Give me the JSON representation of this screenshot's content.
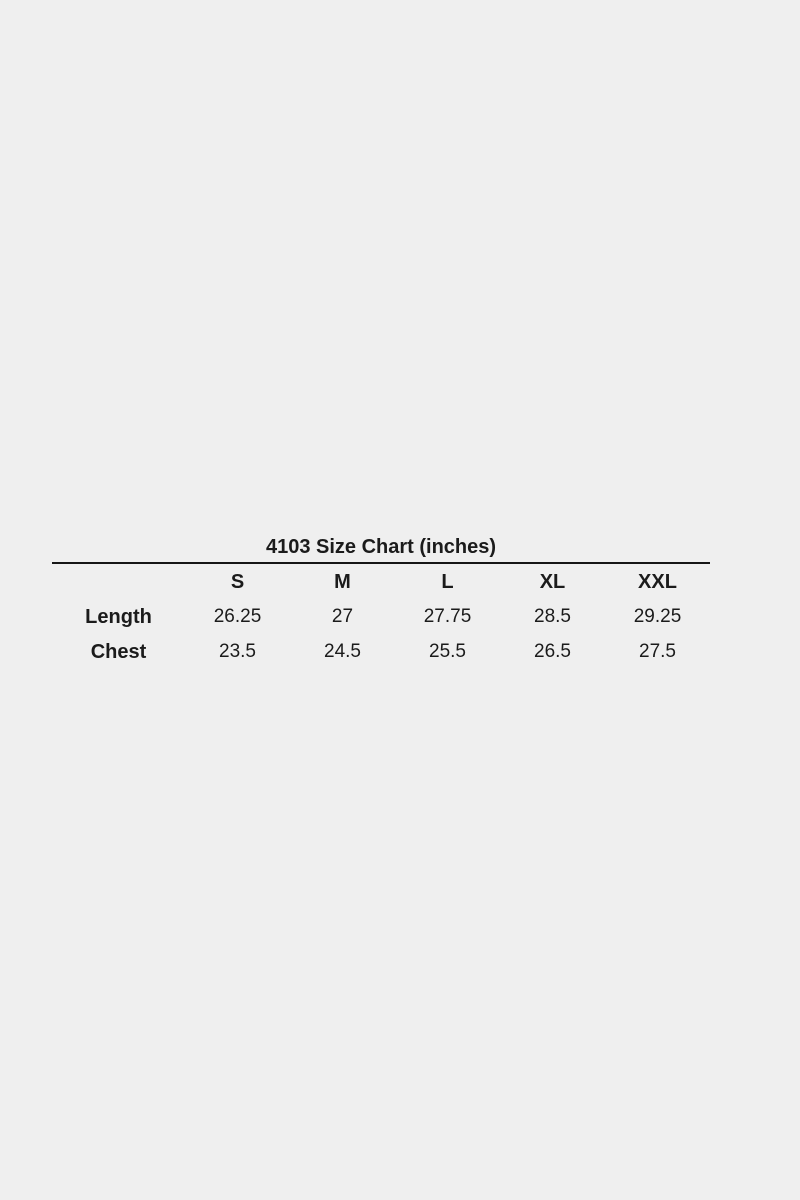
{
  "page": {
    "background_color": "#efefef",
    "text_color": "#1b1b1b",
    "rule_color": "#161616"
  },
  "size_chart": {
    "title": "4103 Size Chart (inches)",
    "columns": [
      "S",
      "M",
      "L",
      "XL",
      "XXL"
    ],
    "rows": [
      {
        "label": "Length",
        "values": [
          "26.25",
          "27",
          "27.75",
          "28.5",
          "29.25"
        ]
      },
      {
        "label": "Chest",
        "values": [
          "23.5",
          "24.5",
          "25.5",
          "26.5",
          "27.5"
        ]
      }
    ]
  },
  "chart_data": {
    "type": "table",
    "title": "4103 Size Chart (inches)",
    "units": "inches",
    "columns": [
      "",
      "S",
      "M",
      "L",
      "XL",
      "XXL"
    ],
    "rows": [
      [
        "Length",
        26.25,
        27,
        27.75,
        28.5,
        29.25
      ],
      [
        "Chest",
        23.5,
        24.5,
        25.5,
        26.5,
        27.5
      ]
    ]
  }
}
